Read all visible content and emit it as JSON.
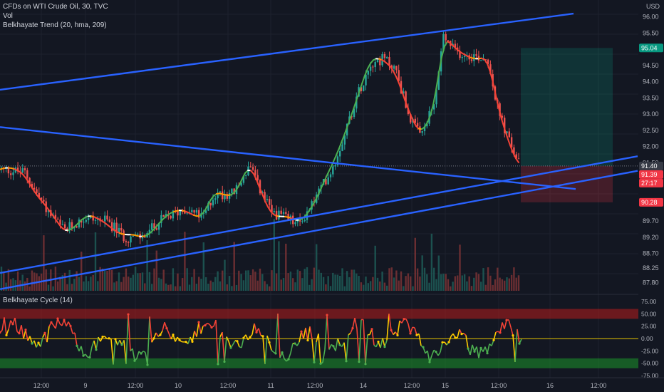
{
  "header": {
    "symbol_line": "CFDs on WTI Crude Oil, 30, TVC",
    "vol_label": "Vol",
    "indicator_label": "Belkhayate Trend (20, hma, 209)",
    "currency": "USD"
  },
  "oscillator": {
    "label": "Belkhayate Cycle  (14)"
  },
  "price_axis": {
    "ticks": [
      "96.00",
      "95.50",
      "94.50",
      "94.00",
      "93.50",
      "93.00",
      "92.50",
      "92.00",
      "91.50",
      "90.90",
      "89.70",
      "89.20",
      "88.70",
      "88.25",
      "87.80"
    ],
    "badges": [
      {
        "text": "95.04",
        "color": "#089981"
      },
      {
        "text": "91.40",
        "color": "#363a45"
      },
      {
        "text": "91.39",
        "color": "#f23645"
      },
      {
        "text": "27:17",
        "color": "#f23645"
      },
      {
        "text": "90.28",
        "color": "#f23645"
      }
    ]
  },
  "osc_axis": {
    "ticks": [
      "75.00",
      "50.00",
      "25.00",
      "0.00",
      "-25.00",
      "-50.00",
      "-75.00"
    ]
  },
  "time_axis": {
    "ticks": [
      "12:00",
      "9",
      "12:00",
      "10",
      "12:00",
      "11",
      "12:00",
      "14",
      "12:00",
      "15",
      "12:00",
      "16",
      "12:00"
    ]
  },
  "colors": {
    "background": "#131722",
    "channel": "#2962ff",
    "up": "#26a69a",
    "down": "#ef5350",
    "trend_up": "#4caf50",
    "trend_down": "#f44336",
    "trend_mid": "#ff9800",
    "target": "#089981",
    "stop": "#f23645",
    "osc_zero": "#e6c300"
  },
  "chart_data": {
    "type": "candlestick",
    "instrument": "CFDs on WTI Crude Oil",
    "interval": "30",
    "price_range": [
      87.55,
      96.3
    ],
    "price_path": [
      [
        0,
        91.3
      ],
      [
        35,
        91.2
      ],
      [
        50,
        90.6
      ],
      [
        70,
        89.9
      ],
      [
        90,
        89.4
      ],
      [
        120,
        89.8
      ],
      [
        150,
        89.7
      ],
      [
        175,
        89.2
      ],
      [
        200,
        89.2
      ],
      [
        225,
        89.7
      ],
      [
        260,
        90.1
      ],
      [
        285,
        89.8
      ],
      [
        300,
        90.5
      ],
      [
        330,
        90.6
      ],
      [
        350,
        91.4
      ],
      [
        360,
        90.9
      ],
      [
        380,
        90.0
      ],
      [
        400,
        89.8
      ],
      [
        420,
        89.6
      ],
      [
        440,
        90.3
      ],
      [
        470,
        91.5
      ],
      [
        500,
        93.5
      ],
      [
        520,
        94.6
      ],
      [
        540,
        94.7
      ],
      [
        555,
        94.4
      ],
      [
        575,
        92.9
      ],
      [
        590,
        92.3
      ],
      [
        610,
        93.3
      ],
      [
        622,
        95.4
      ],
      [
        640,
        94.9
      ],
      [
        665,
        94.8
      ],
      [
        685,
        94.7
      ],
      [
        698,
        93.2
      ],
      [
        712,
        92.3
      ],
      [
        730,
        91.4
      ]
    ],
    "channels": [
      {
        "name": "upper channel",
        "from": [
          0,
          93.75
        ],
        "to": [
          805,
          96.1
        ]
      },
      {
        "name": "descending trendline",
        "from": [
          0,
          92.6
        ],
        "to": [
          808,
          90.69
        ]
      },
      {
        "name": "rising support 1",
        "from": [
          0,
          88.1
        ],
        "to": [
          895,
          91.7
        ]
      },
      {
        "name": "rising support 2",
        "from": [
          0,
          87.6
        ],
        "to": [
          895,
          91.25
        ]
      }
    ],
    "position": {
      "type": "long",
      "target": 95.04,
      "entry": 91.4,
      "stop": 90.28
    },
    "oscillator": {
      "name": "Belkhayate Cycle",
      "period": 14,
      "range": [
        -75,
        75
      ],
      "overbought_zone": [
        40,
        60
      ],
      "oversold_zone": [
        -40,
        -60
      ],
      "zero_line": 0
    }
  }
}
